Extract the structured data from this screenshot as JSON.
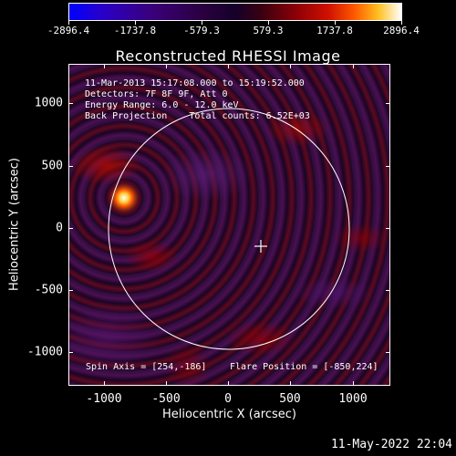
{
  "colorbar": {
    "labels": [
      "-2896.4",
      "-1737.8",
      "-579.3",
      "579.3",
      "1737.8",
      "2896.4"
    ]
  },
  "title": "Reconstructed RHESSI Image",
  "info": {
    "line1": "11-Mar-2013 15:17:08.000 to 15:19:52.000",
    "line2": "Detectors: 7F 8F 9F, Att 0",
    "line3": "Energy Range: 6.0 - 12.0 keV",
    "line4": "Back Projection    Total counts: 6.52E+03"
  },
  "footer": {
    "spin_axis": "Spin Axis = [254,-186]",
    "flare_position": "Flare Position = [-850,224]"
  },
  "axes": {
    "xlabel": "Heliocentric X (arcsec)",
    "ylabel": "Heliocentric Y (arcsec)",
    "x_ticks": [
      "-1000",
      "-500",
      "0",
      "500",
      "1000"
    ],
    "y_ticks": [
      "1000",
      "500",
      "0",
      "-500",
      "-1000"
    ]
  },
  "timestamp": "11-May-2022 22:04"
}
